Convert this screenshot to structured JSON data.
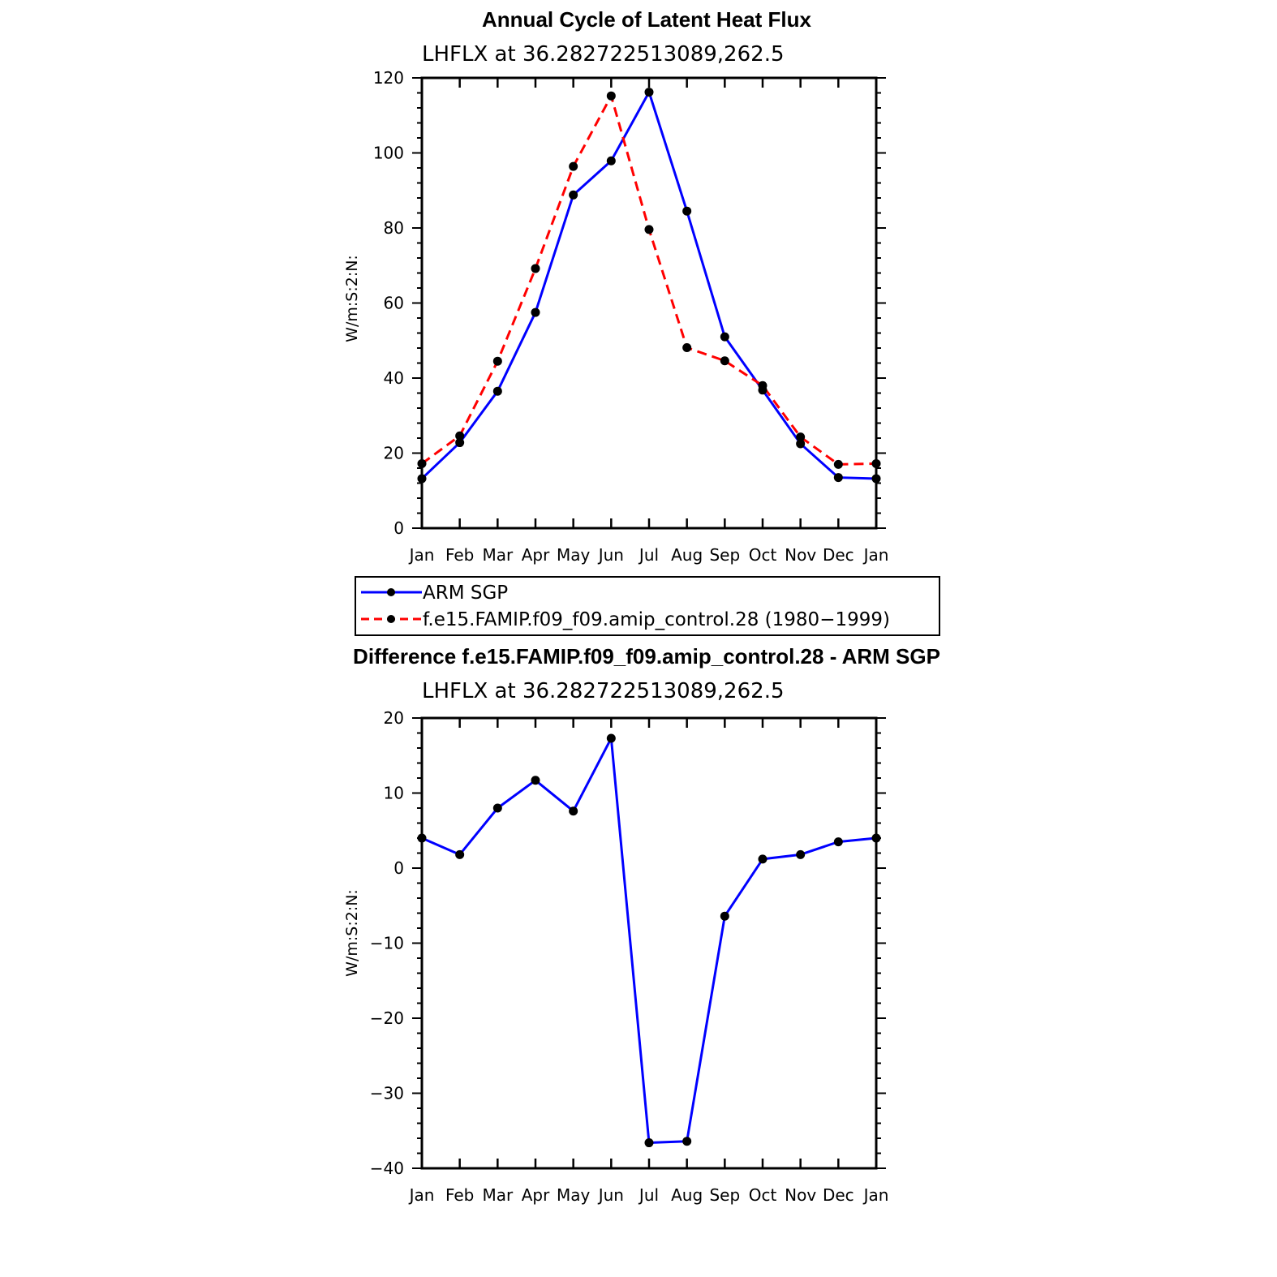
{
  "chart_data": [
    {
      "type": "line",
      "title": "Annual Cycle of Latent Heat Flux",
      "subtitle": "LHFLX at 36.282722513089,262.5",
      "xlabel": "",
      "ylabel": "W/m:S:2:N:",
      "categories": [
        "Jan",
        "Feb",
        "Mar",
        "Apr",
        "May",
        "Jun",
        "Jul",
        "Aug",
        "Sep",
        "Oct",
        "Nov",
        "Dec",
        "Jan"
      ],
      "ylim": [
        0,
        120
      ],
      "yticks": [
        0,
        20,
        40,
        60,
        80,
        100,
        120
      ],
      "ytick_labels": [
        "0",
        "20",
        "40",
        "60",
        "80",
        "100",
        "120"
      ],
      "series": [
        {
          "name": "ARM SGP",
          "color": "#0000ff",
          "dash": "solid",
          "values": [
            13.2,
            22.8,
            36.5,
            57.5,
            88.8,
            97.9,
            116.2,
            84.5,
            51.0,
            36.8,
            22.5,
            13.5,
            13.2
          ]
        },
        {
          "name": "f.e15.FAMIP.f09_f09.amip_control.28 (1980−1999)",
          "color": "#ff0000",
          "dash": "dashed",
          "values": [
            17.2,
            24.6,
            44.5,
            69.2,
            96.4,
            115.2,
            79.6,
            48.1,
            44.6,
            38.0,
            24.3,
            17.0,
            17.2
          ]
        }
      ],
      "legend": {
        "position": "below",
        "entries": [
          "ARM SGP",
          "f.e15.FAMIP.f09_f09.amip_control.28 (1980−1999)"
        ]
      }
    },
    {
      "type": "line",
      "title": "Difference f.e15.FAMIP.f09_f09.amip_control.28 - ARM SGP",
      "subtitle": "LHFLX at 36.282722513089,262.5",
      "xlabel": "",
      "ylabel": "W/m:S:2:N:",
      "categories": [
        "Jan",
        "Feb",
        "Mar",
        "Apr",
        "May",
        "Jun",
        "Jul",
        "Aug",
        "Sep",
        "Oct",
        "Nov",
        "Dec",
        "Jan"
      ],
      "ylim": [
        -40,
        20
      ],
      "yticks": [
        -40,
        -30,
        -20,
        -10,
        0,
        10,
        20
      ],
      "ytick_labels": [
        "−40",
        "−30",
        "−20",
        "−10",
        "0",
        "10",
        "20"
      ],
      "series": [
        {
          "name": "Difference",
          "color": "#0000ff",
          "dash": "solid",
          "values": [
            4.0,
            1.8,
            8.0,
            11.7,
            7.6,
            17.3,
            -36.6,
            -36.4,
            -6.4,
            1.2,
            1.8,
            3.5,
            4.0
          ]
        }
      ]
    }
  ]
}
